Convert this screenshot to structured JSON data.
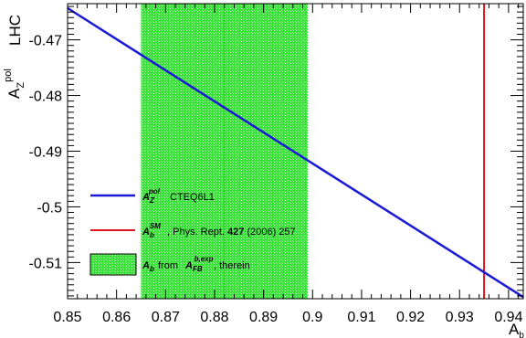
{
  "chart_data": {
    "type": "line",
    "title": "",
    "corner_label": "LHC",
    "xlabel": "A_b",
    "xlabel_main": "A",
    "xlabel_sub": "b",
    "ylabel": "A_Z^pol",
    "ylabel_main": "A",
    "ylabel_sub": "Z",
    "ylabel_sup": "pol",
    "xlim": [
      0.85,
      0.943
    ],
    "ylim": [
      -0.5165,
      -0.4635
    ],
    "x_ticks": [
      0.85,
      0.86,
      0.87,
      0.88,
      0.89,
      0.9,
      0.91,
      0.92,
      0.93,
      0.94
    ],
    "x_tick_labels": [
      "0.85",
      "0.86",
      "0.87",
      "0.88",
      "0.89",
      "0.9",
      "0.91",
      "0.92",
      "0.93",
      "0.94"
    ],
    "y_ticks": [
      -0.47,
      -0.48,
      -0.49,
      -0.5,
      -0.51
    ],
    "y_tick_labels": [
      "-0.47",
      "-0.48",
      "-0.49",
      "-0.5",
      "-0.51"
    ],
    "grid": false,
    "legend_position": "bottom-left",
    "series": [
      {
        "name": "A_Z^pol CTEQ6L1",
        "kind": "line",
        "color": "#1a1ad6",
        "x": [
          0.85,
          0.943
        ],
        "y": [
          -0.4643,
          -0.5162
        ]
      }
    ],
    "vertical_line": {
      "name": "A_b^SM, Phys. Rept. 427 (2006) 257",
      "color": "#e0141e",
      "x": 0.935
    },
    "band": {
      "name": "A_b from A_FB^b,exp, therein",
      "color": "#33e233",
      "x_range": [
        0.865,
        0.899
      ],
      "center": 0.882
    },
    "legend": [
      {
        "symbol_main": "A",
        "symbol_sub": "Z",
        "symbol_sup": "pol",
        "text": "CTEQ6L1",
        "kind": "line",
        "color": "#1a1ad6"
      },
      {
        "symbol_main": "A",
        "symbol_sub": "b",
        "symbol_sup": "SM",
        "text_prefix": ", Phys. Rept. ",
        "text_bold": "427",
        "text_suffix": " (2006) 257",
        "kind": "line",
        "color": "#e0141e"
      },
      {
        "symbol_main": "A",
        "symbol_sub": "b",
        "text_mid": " from ",
        "symbol2_main": "A",
        "symbol2_sub": "FB",
        "symbol2_sup": "b,exp",
        "text_suffix": ", therein",
        "kind": "box",
        "color": "#33e233"
      }
    ]
  }
}
